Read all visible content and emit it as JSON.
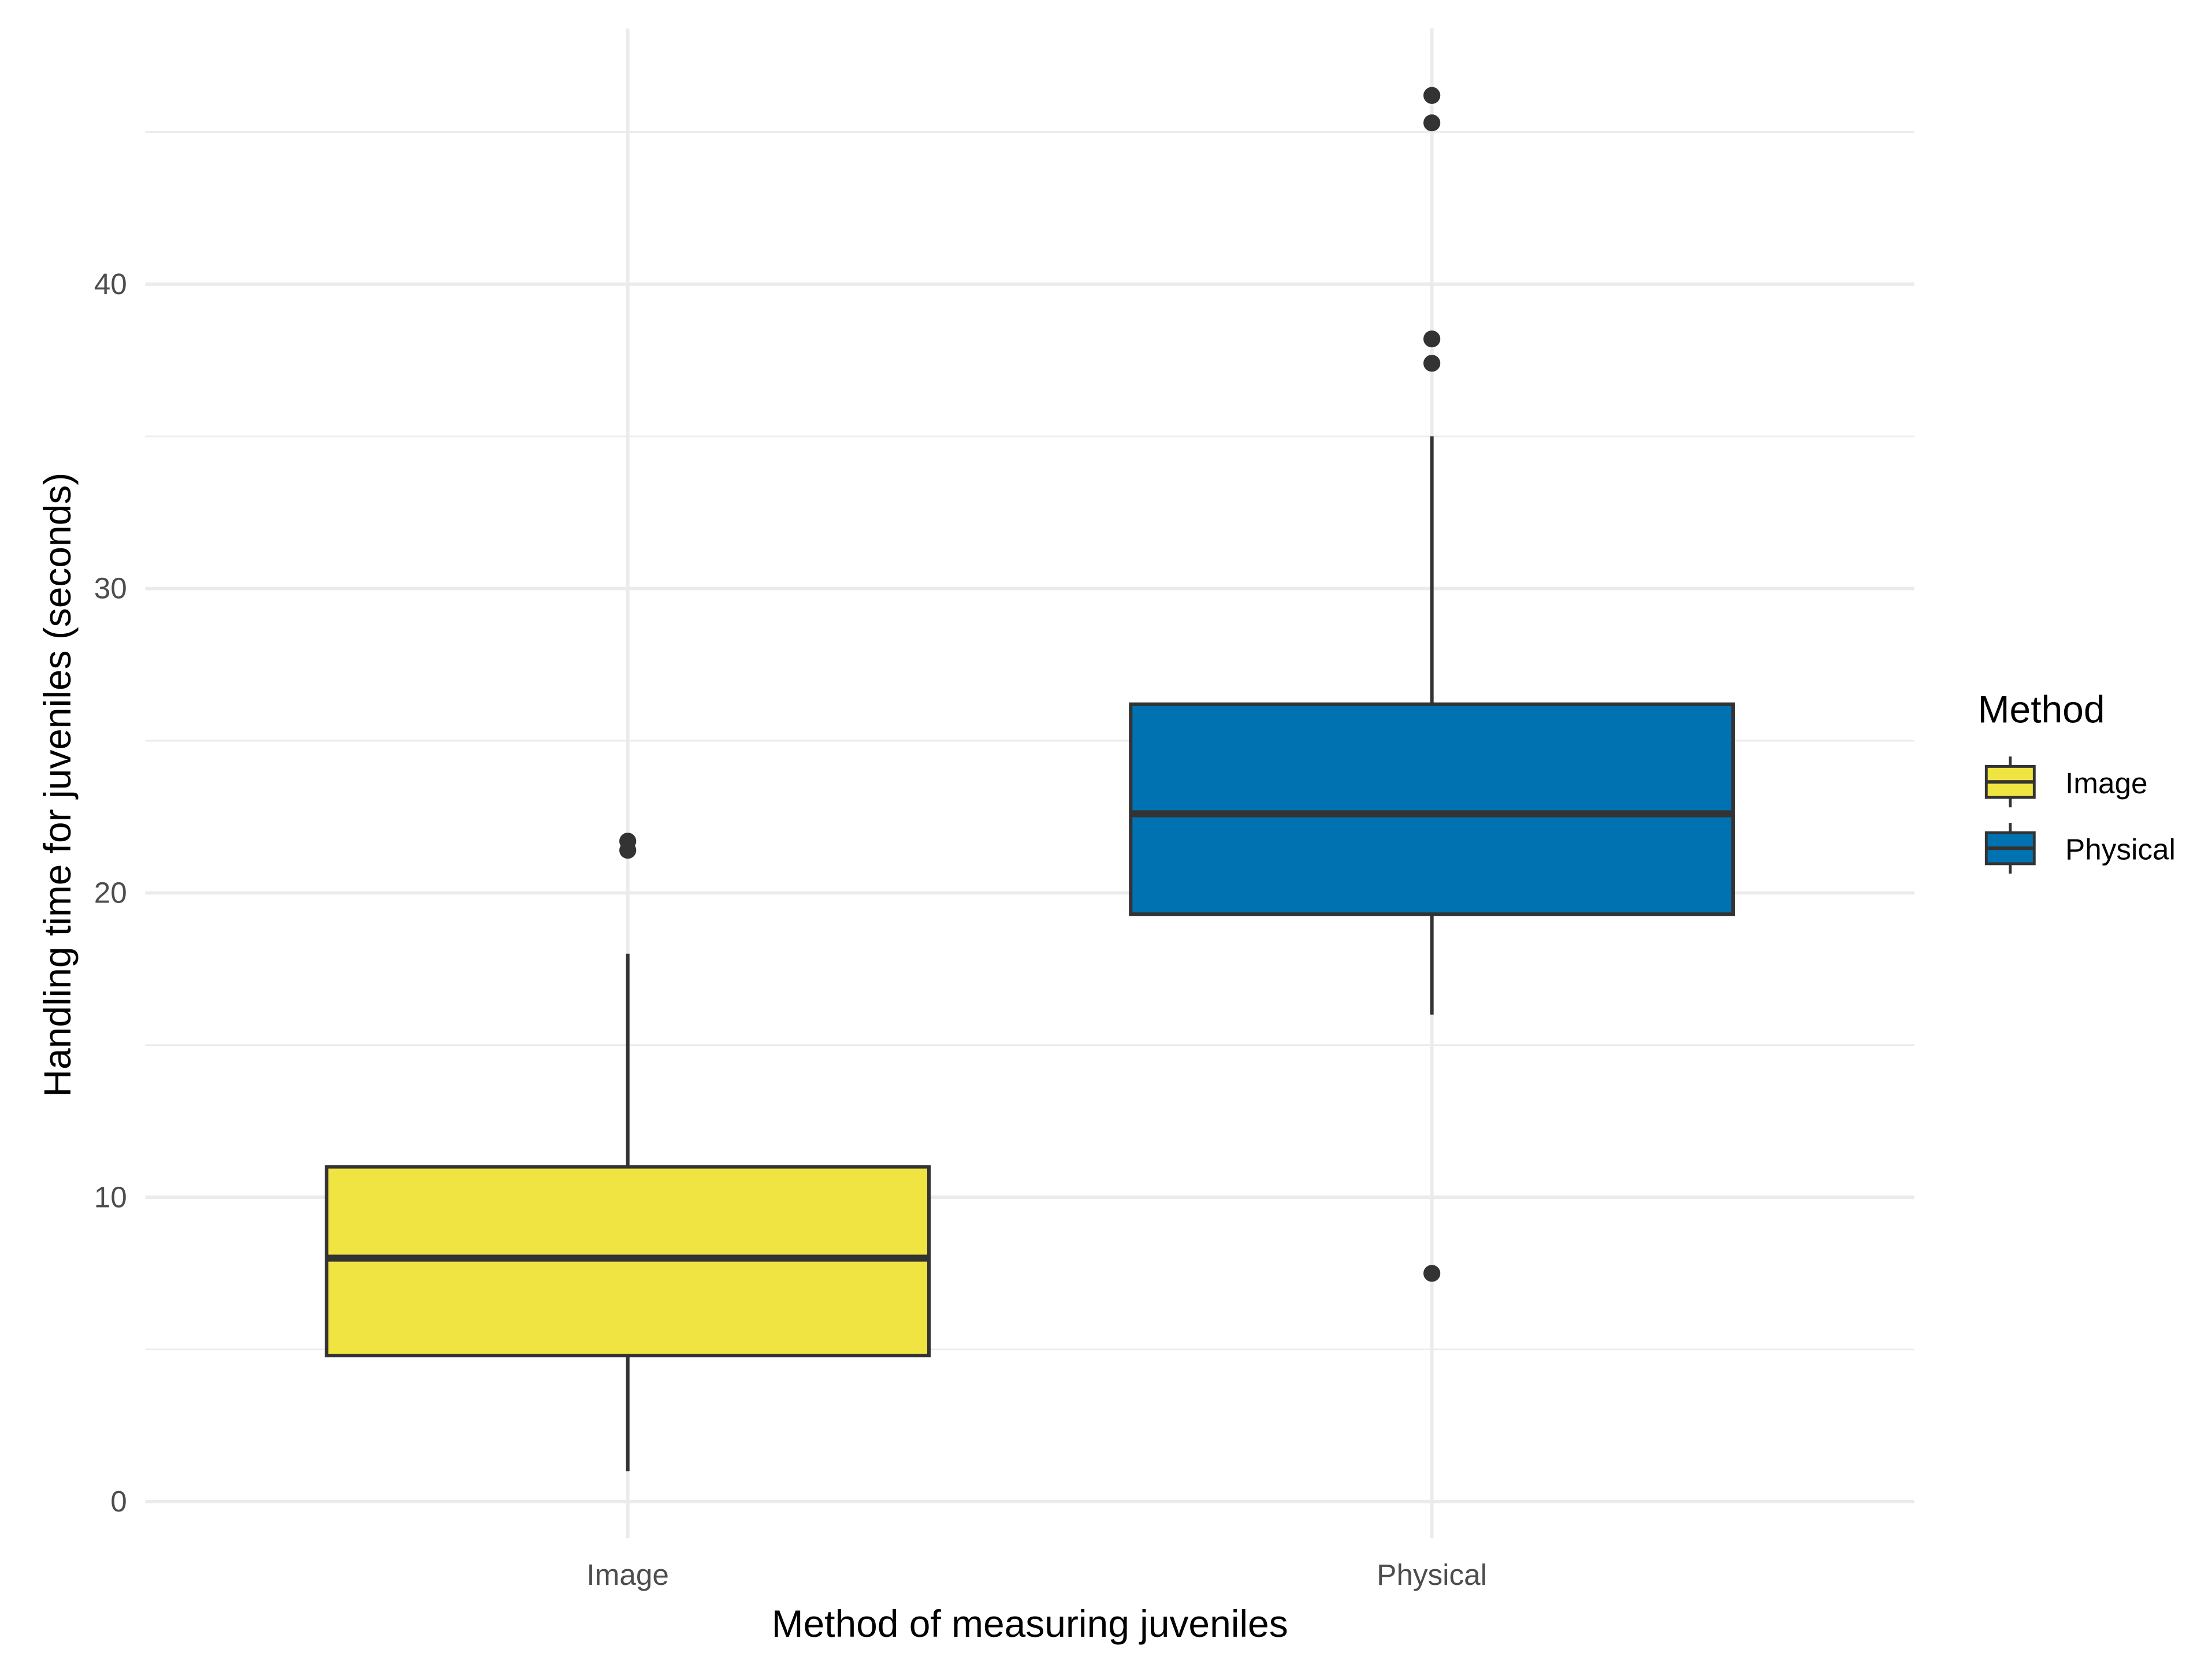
{
  "chart_data": {
    "type": "boxplot",
    "title": "",
    "xlabel": "Method of measuring juveniles",
    "ylabel": "Handling time for juveniles (seconds)",
    "categories": [
      "Image",
      "Physical"
    ],
    "ylim": [
      -1.2,
      48.4
    ],
    "yticks": [
      0,
      10,
      20,
      30,
      40
    ],
    "grid": true,
    "legend": {
      "title": "Method",
      "placement": "right",
      "entries": [
        "Image",
        "Physical"
      ]
    },
    "series": [
      {
        "name": "Image",
        "color": "#F0E442",
        "whisker_low": 1.0,
        "q1": 4.8,
        "median": 8.0,
        "q3": 11.0,
        "whisker_high": 18.0,
        "outliers": [
          21.4,
          21.7
        ]
      },
      {
        "name": "Physical",
        "color": "#0072B2",
        "whisker_low": 16.0,
        "q1": 19.3,
        "median": 22.6,
        "q3": 26.2,
        "whisker_high": 35.0,
        "outliers": [
          7.5,
          37.4,
          38.2,
          45.3,
          46.2
        ]
      }
    ]
  }
}
